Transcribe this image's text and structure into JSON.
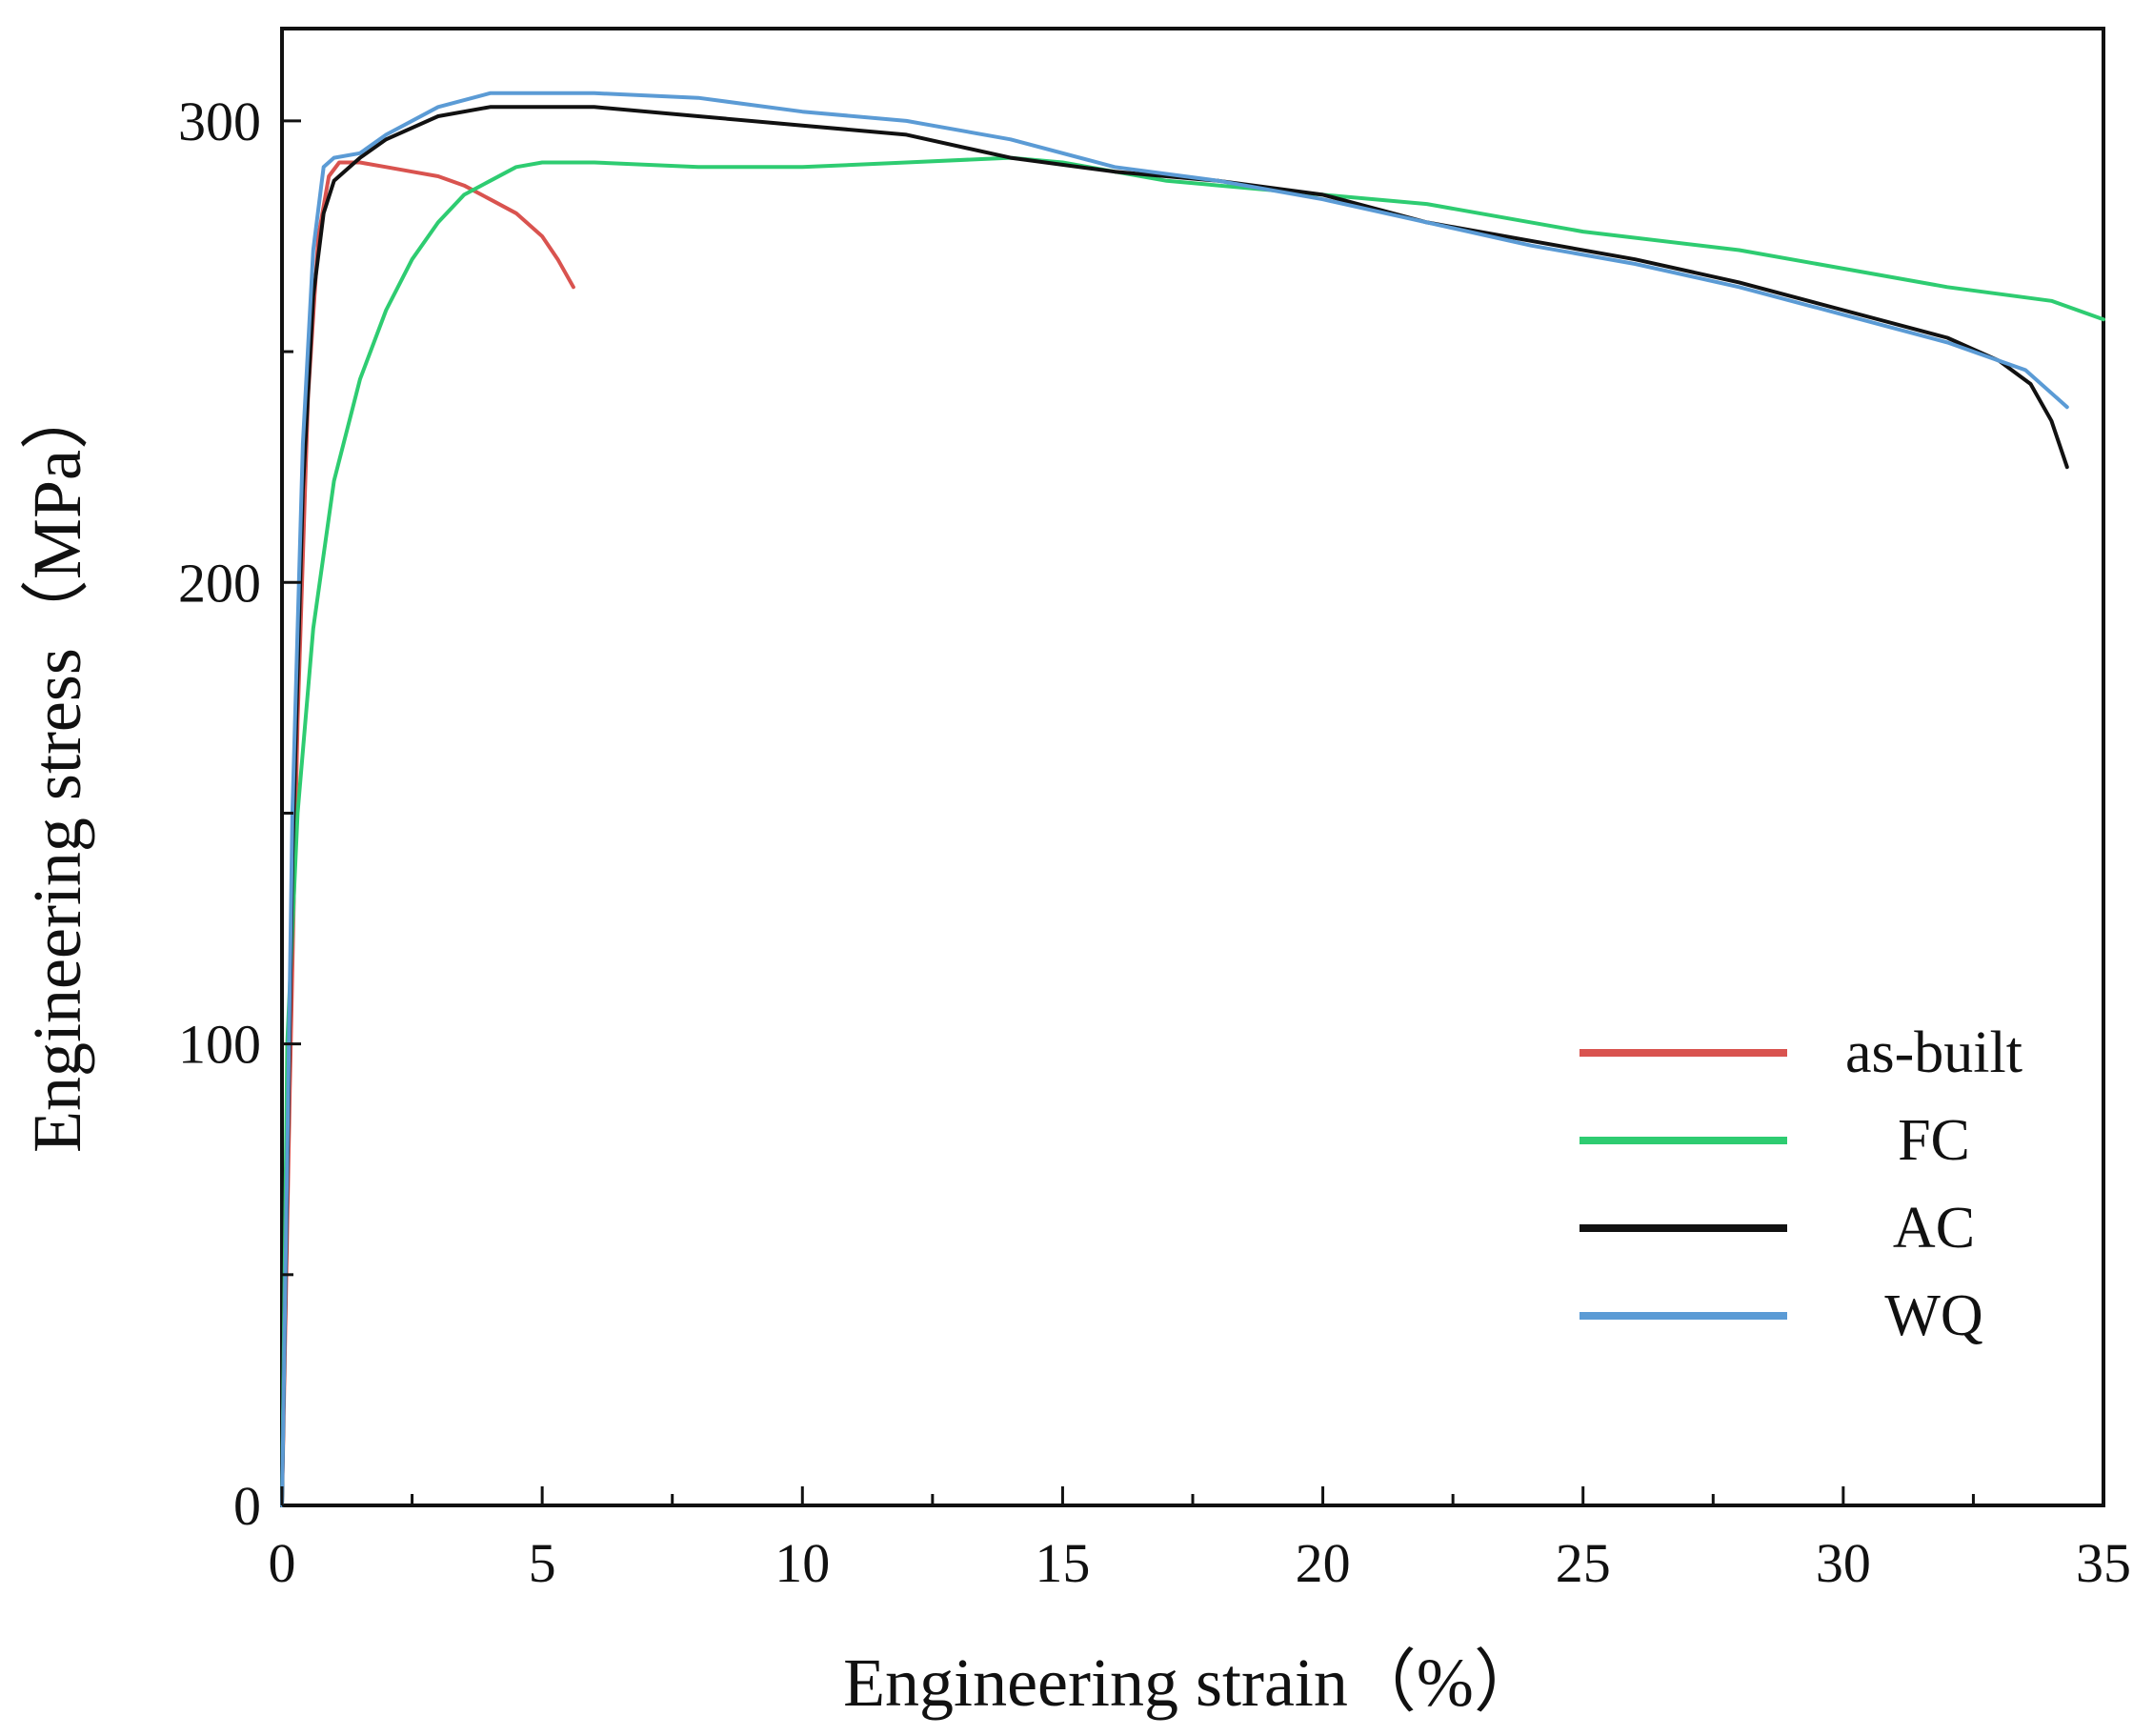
{
  "chart_data": {
    "type": "line",
    "title": "",
    "xlabel": "Engineering strain（%）",
    "ylabel": "Engineering stress（MPa）",
    "xlim": [
      0,
      35
    ],
    "ylim": [
      0,
      320
    ],
    "xticks": [
      0,
      5,
      10,
      15,
      20,
      25,
      30,
      35
    ],
    "xtick_labels": [
      "0",
      "5",
      "10",
      "15",
      "20",
      "25",
      "30",
      "35"
    ],
    "yticks": [
      0,
      100,
      200,
      300
    ],
    "ytick_labels": [
      "0",
      "100",
      "200",
      "300"
    ],
    "grid": false,
    "legend_position": "bottom-right",
    "series": [
      {
        "name": "as-built",
        "color": "#d9534f",
        "x": [
          0,
          0.15,
          0.3,
          0.5,
          0.7,
          0.9,
          1.1,
          1.5,
          2.0,
          2.5,
          3.0,
          3.5,
          4.0,
          4.5,
          5.0,
          5.3,
          5.6
        ],
        "y": [
          0,
          90,
          170,
          240,
          275,
          288,
          291,
          291,
          290,
          289,
          288,
          286,
          283,
          280,
          275,
          270,
          264
        ]
      },
      {
        "name": "FC",
        "color": "#2ecc71",
        "x": [
          0,
          0.1,
          0.3,
          0.6,
          1.0,
          1.5,
          2.0,
          2.5,
          3.0,
          3.5,
          4.0,
          4.5,
          5.0,
          6.0,
          8.0,
          10.0,
          12.0,
          14.0,
          15.0,
          17.0,
          20.0,
          22.0,
          25.0,
          28.0,
          30.0,
          32.0,
          34.0,
          35.0
        ],
        "y": [
          0,
          100,
          150,
          190,
          222,
          244,
          259,
          270,
          278,
          284,
          287,
          290,
          291,
          291,
          290,
          290,
          291,
          292,
          291,
          287,
          284,
          282,
          276,
          272,
          268,
          264,
          261,
          257
        ]
      },
      {
        "name": "AC",
        "color": "#111111",
        "x": [
          0,
          0.2,
          0.4,
          0.6,
          0.8,
          1.0,
          1.5,
          2.0,
          3.0,
          4.0,
          5.0,
          6.0,
          8.0,
          10.0,
          12.0,
          14.0,
          16.0,
          18.0,
          20.0,
          22.0,
          24.0,
          26.0,
          28.0,
          30.0,
          32.0,
          33.0,
          33.6,
          34.0,
          34.3
        ],
        "y": [
          0,
          140,
          220,
          262,
          280,
          287,
          292,
          296,
          301,
          303,
          303,
          303,
          301,
          299,
          297,
          292,
          289,
          287,
          284,
          278,
          274,
          270,
          265,
          259,
          253,
          248,
          243,
          235,
          225
        ]
      },
      {
        "name": "WQ",
        "color": "#5b9bd5",
        "x": [
          0,
          0.2,
          0.4,
          0.6,
          0.8,
          1.0,
          1.5,
          2.0,
          3.0,
          4.0,
          5.0,
          6.0,
          8.0,
          10.0,
          12.0,
          14.0,
          16.0,
          18.0,
          20.0,
          22.0,
          24.0,
          26.0,
          28.0,
          30.0,
          32.0,
          33.5,
          34.3
        ],
        "y": [
          0,
          150,
          230,
          272,
          290,
          292,
          293,
          297,
          303,
          306,
          306,
          306,
          305,
          302,
          300,
          296,
          290,
          287,
          283,
          278,
          273,
          269,
          264,
          258,
          252,
          246,
          238
        ]
      }
    ]
  }
}
